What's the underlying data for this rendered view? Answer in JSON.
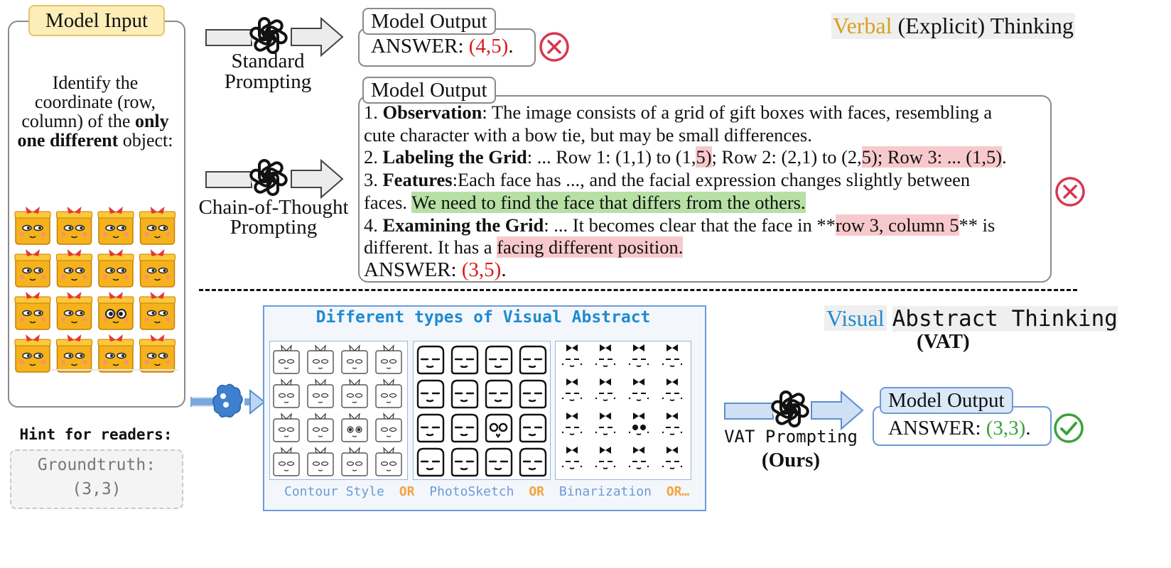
{
  "model_input": {
    "tag": "Model Input",
    "question_pre": "Identify the coordinate (row, column) of the",
    "question_bold": "only one different",
    "question_post": "object:"
  },
  "hint": {
    "title": "Hint for readers:",
    "label": "Groundtruth:",
    "value": "(3,3)"
  },
  "standard": {
    "label_line1": "Standard",
    "label_line2": "Prompting",
    "output_tag": "Model Output",
    "answer_prefix": "ANSWER:",
    "answer_value": "(4,5)",
    "answer_suffix": "."
  },
  "verbal_title": {
    "highlight": "Verbal",
    "rest": "(Explicit) Thinking"
  },
  "cot": {
    "label_line1": "Chain-of-Thought",
    "label_line2": "Prompting",
    "output_tag": "Model Output",
    "line1_num": "1.",
    "line1_bold": "Observation",
    "line1_text": ": The image consists of a grid of gift boxes with faces, resembling a",
    "line2_text": "cute character with a bow tie, but may be small differences.",
    "line3_num": "2.",
    "line3_bold": "Labeling the Grid",
    "line3_a": ": ... Row 1: (1,1) to (1,",
    "line3_b": "5)",
    "line3_c": "; Row 2: (2,1) to (2,",
    "line3_d": "5); Row 3: ... (1,5)",
    "line3_e": ".",
    "line4_num": "3.",
    "line4_bold": "Features",
    "line4_text": ":Each face has ..., and the facial expression changes slightly between",
    "line5_a": "faces.",
    "line5_hl": "We need to find the face that differs from the others.",
    "line6_num": "4.",
    "line6_bold": "Examining the Grid",
    "line6_a": ": ... It becomes clear that the face in **",
    "line6_hl": "row 3, column 5",
    "line6_b": "** is",
    "line7_a": "different. It has a",
    "line7_hl": "facing different position.",
    "answer_prefix": "ANSWER:",
    "answer_value": "(3,5)",
    "answer_suffix": "."
  },
  "vat_title": {
    "highlight": "Visual",
    "rest": "Abstract Thinking",
    "acronym": "(VAT)"
  },
  "abstract_panel": {
    "title": "Different types of Visual Abstract",
    "style1": "Contour Style",
    "or1": "OR",
    "style2": "PhotoSketch",
    "or2": "OR",
    "style3": "Binarization",
    "or3": "OR…"
  },
  "vat": {
    "label_line1": "VAT Prompting",
    "label_line2": "(Ours)",
    "output_tag": "Model Output",
    "answer_prefix": "ANSWER:",
    "answer_value": "(3,3)",
    "answer_suffix": "."
  },
  "colors": {
    "verbal": "#d9a11e",
    "visual": "#1f8bd1",
    "wrong": "#d9354f",
    "right": "#3aa13a",
    "highlight_red": "#f8c9cc",
    "highlight_green": "#b7e0a5",
    "or_orange": "#f4a340",
    "style_blue": "#6d9ad6"
  },
  "icons": [
    "openai-logo-icon",
    "wrong-icon",
    "check-icon",
    "brain-icon",
    "gift-face-icon"
  ]
}
